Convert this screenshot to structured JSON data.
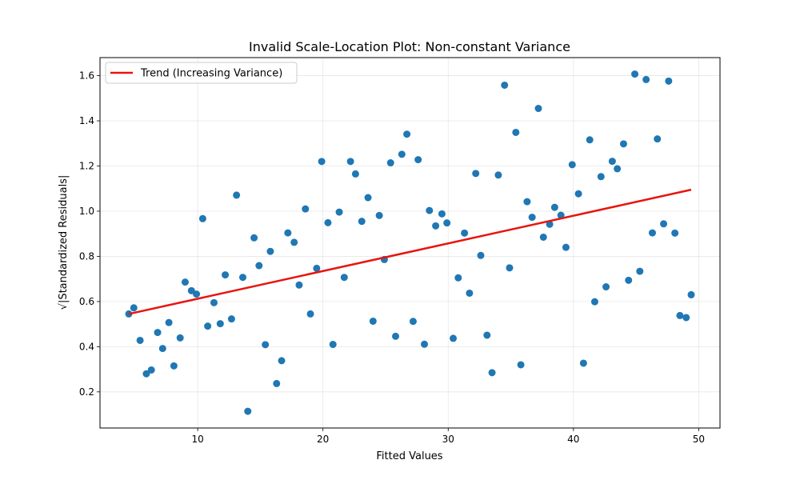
{
  "chart_data": {
    "type": "scatter",
    "title": "Invalid Scale-Location Plot: Non-constant Variance",
    "xlabel": "Fitted Values",
    "ylabel": "√|Standardized Residuals|",
    "xlim": [
      2.2,
      51.7
    ],
    "ylim": [
      0.04,
      1.68
    ],
    "xticks": [
      10,
      20,
      30,
      40,
      50
    ],
    "yticks": [
      0.2,
      0.4,
      0.6,
      0.8,
      1.0,
      1.2,
      1.4,
      1.6
    ],
    "xtick_labels": [
      "10",
      "20",
      "30",
      "40",
      "50"
    ],
    "ytick_labels": [
      "0.2",
      "0.4",
      "0.6",
      "0.8",
      "1.0",
      "1.2",
      "1.4",
      "1.6"
    ],
    "grid": true,
    "legend_position": "upper left",
    "point_color": "#1f77b4",
    "line_color": "#e8140f",
    "series": [
      {
        "kind": "scatter",
        "x": [
          4.5,
          4.9,
          5.4,
          5.9,
          6.3,
          6.8,
          7.2,
          7.7,
          8.1,
          8.6,
          9.0,
          9.5,
          9.9,
          10.4,
          10.8,
          11.3,
          11.8,
          12.2,
          12.7,
          13.1,
          13.6,
          14.0,
          14.5,
          14.9,
          15.4,
          15.8,
          16.3,
          16.7,
          17.2,
          17.7,
          18.1,
          18.6,
          19.0,
          19.5,
          19.9,
          20.4,
          20.8,
          21.3,
          21.7,
          22.2,
          22.6,
          23.1,
          23.6,
          24.0,
          24.5,
          24.9,
          25.4,
          25.8,
          26.3,
          26.7,
          27.2,
          27.6,
          28.1,
          28.5,
          29.0,
          29.5,
          29.9,
          30.4,
          30.8,
          31.3,
          31.7,
          32.2,
          32.6,
          33.1,
          33.5,
          34.0,
          34.5,
          34.9,
          35.4,
          35.8,
          36.3,
          36.7,
          37.2,
          37.6,
          38.1,
          38.5,
          39.0,
          39.4,
          39.9,
          40.4,
          40.8,
          41.3,
          41.7,
          42.2,
          42.6,
          43.1,
          43.5,
          44.0,
          44.4,
          44.9,
          45.3,
          45.8,
          46.3,
          46.7,
          47.2,
          47.6,
          48.1,
          48.5,
          49.0,
          49.4
        ],
        "y": [
          0.545,
          0.572,
          0.428,
          0.28,
          0.297,
          0.463,
          0.392,
          0.507,
          0.315,
          0.439,
          0.686,
          0.648,
          0.633,
          0.967,
          0.491,
          0.595,
          0.502,
          0.718,
          0.523,
          1.071,
          0.707,
          0.114,
          0.882,
          0.759,
          0.409,
          0.822,
          0.237,
          0.338,
          0.904,
          0.862,
          0.673,
          1.01,
          0.545,
          0.747,
          1.22,
          0.949,
          0.41,
          0.996,
          0.707,
          1.22,
          1.165,
          0.955,
          1.06,
          0.513,
          0.981,
          0.786,
          1.214,
          0.446,
          1.252,
          1.341,
          0.512,
          1.228,
          0.411,
          1.003,
          0.935,
          0.988,
          0.948,
          0.437,
          0.705,
          0.903,
          0.637,
          1.167,
          0.804,
          0.451,
          0.285,
          1.16,
          1.558,
          0.749,
          1.349,
          0.32,
          1.042,
          0.973,
          1.455,
          0.885,
          0.942,
          1.017,
          0.982,
          0.84,
          1.206,
          1.077,
          0.327,
          1.316,
          0.599,
          1.153,
          0.665,
          1.221,
          1.188,
          1.298,
          0.694,
          1.607,
          0.734,
          1.583,
          0.904,
          1.32,
          0.944,
          1.576,
          0.903,
          0.538,
          0.529,
          0.63
        ]
      },
      {
        "kind": "line",
        "name": "Trend (Increasing Variance)",
        "x": [
          4.5,
          49.4
        ],
        "y": [
          0.545,
          1.095
        ]
      }
    ]
  }
}
